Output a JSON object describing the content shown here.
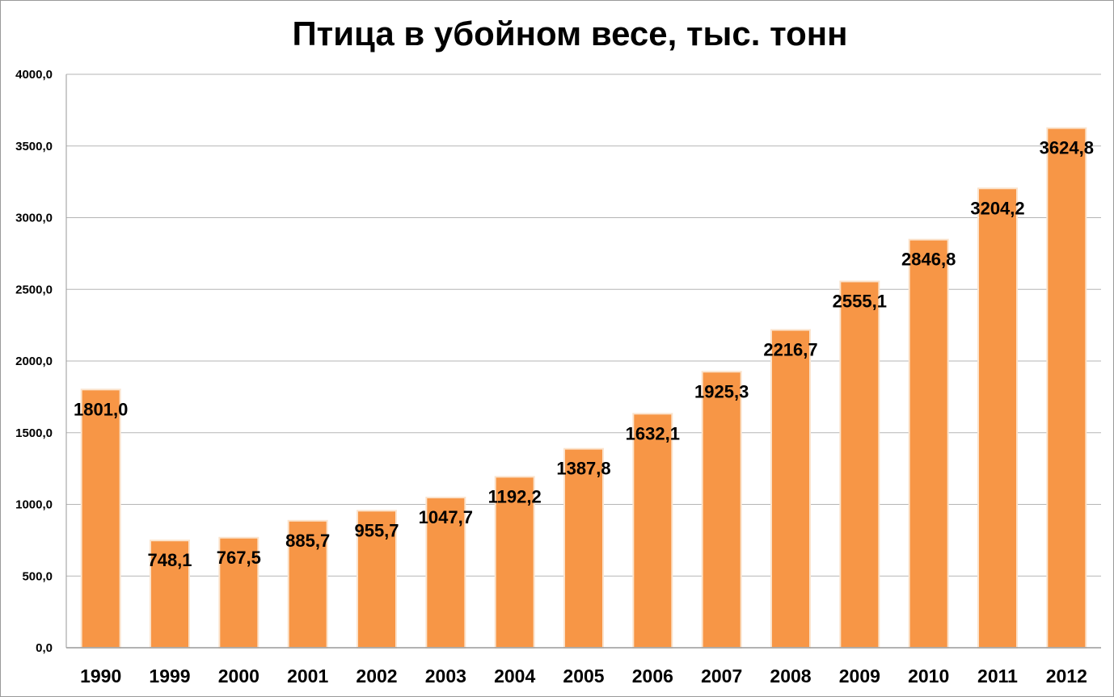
{
  "chart_data": {
    "type": "bar",
    "title": "Птица в убойном весе, тыс. тонн",
    "xlabel": "",
    "ylabel": "",
    "categories": [
      "1990",
      "1999",
      "2000",
      "2001",
      "2002",
      "2003",
      "2004",
      "2005",
      "2006",
      "2007",
      "2008",
      "2009",
      "2010",
      "2011",
      "2012"
    ],
    "values": [
      1801.0,
      748.1,
      767.5,
      885.7,
      955.7,
      1047.7,
      1192.2,
      1387.8,
      1632.1,
      1925.3,
      2216.7,
      2555.1,
      2846.8,
      3204.2,
      3624.8
    ],
    "value_labels": [
      "1801,0",
      "748,1",
      "767,5",
      "885,7",
      "955,7",
      "1047,7",
      "1192,2",
      "1387,8",
      "1632,1",
      "1925,3",
      "2216,7",
      "2555,1",
      "2846,8",
      "3204,2",
      "3624,8"
    ],
    "ylim": [
      0,
      4000
    ],
    "yticks": [
      0,
      500,
      1000,
      1500,
      2000,
      2500,
      3000,
      3500,
      4000
    ],
    "ytick_labels": [
      "0,0",
      "500,0",
      "1000,0",
      "1500,0",
      "2000,0",
      "2500,0",
      "3000,0",
      "3500,0",
      "4000,0"
    ],
    "grid": true,
    "legend": "none",
    "colors": {
      "bar": "#f79646",
      "bar_edge": "#fbe3cc",
      "grid": "#b5b5b5",
      "axis": "#9a9a9a"
    }
  }
}
